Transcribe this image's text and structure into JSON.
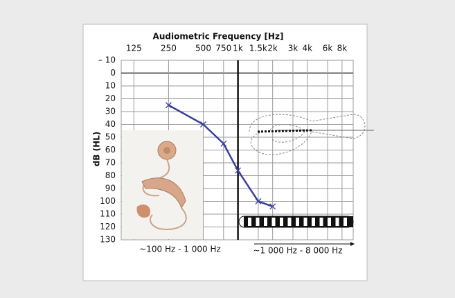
{
  "chart_data": {
    "type": "line",
    "title": "Audiometric Frequency [Hz]",
    "y_label": "dB (HL)",
    "x": [
      250,
      500,
      750,
      1000,
      1500,
      2000
    ],
    "series": [
      {
        "color": "#3b3f9b",
        "values": [
          25,
          40,
          55,
          76,
          100,
          104
        ]
      }
    ],
    "xlim": [
      97,
      10000
    ],
    "log_x": true,
    "xticks": [
      125,
      250,
      500,
      750,
      {
        "value": 1000,
        "label": "1k"
      },
      {
        "value": 1500,
        "label": "1.5k"
      },
      {
        "value": 2000,
        "label": "2k"
      },
      {
        "value": 3000,
        "label": "3k"
      },
      {
        "value": 4000,
        "label": "4k"
      },
      {
        "value": 6000,
        "label": "6k"
      },
      {
        "value": 8000,
        "label": "8k"
      }
    ],
    "ylim": [
      -10,
      130
    ],
    "y_inverted": true,
    "yticks": [
      {
        "value": -10,
        "label": "– 10"
      },
      0,
      10,
      20,
      30,
      40,
      50,
      60,
      70,
      80,
      90,
      100,
      110,
      120,
      130
    ],
    "grid": true,
    "annotations": [
      "~100 Hz - 1 000 Hz",
      "~1 000 Hz - 8 000 Hz"
    ]
  }
}
